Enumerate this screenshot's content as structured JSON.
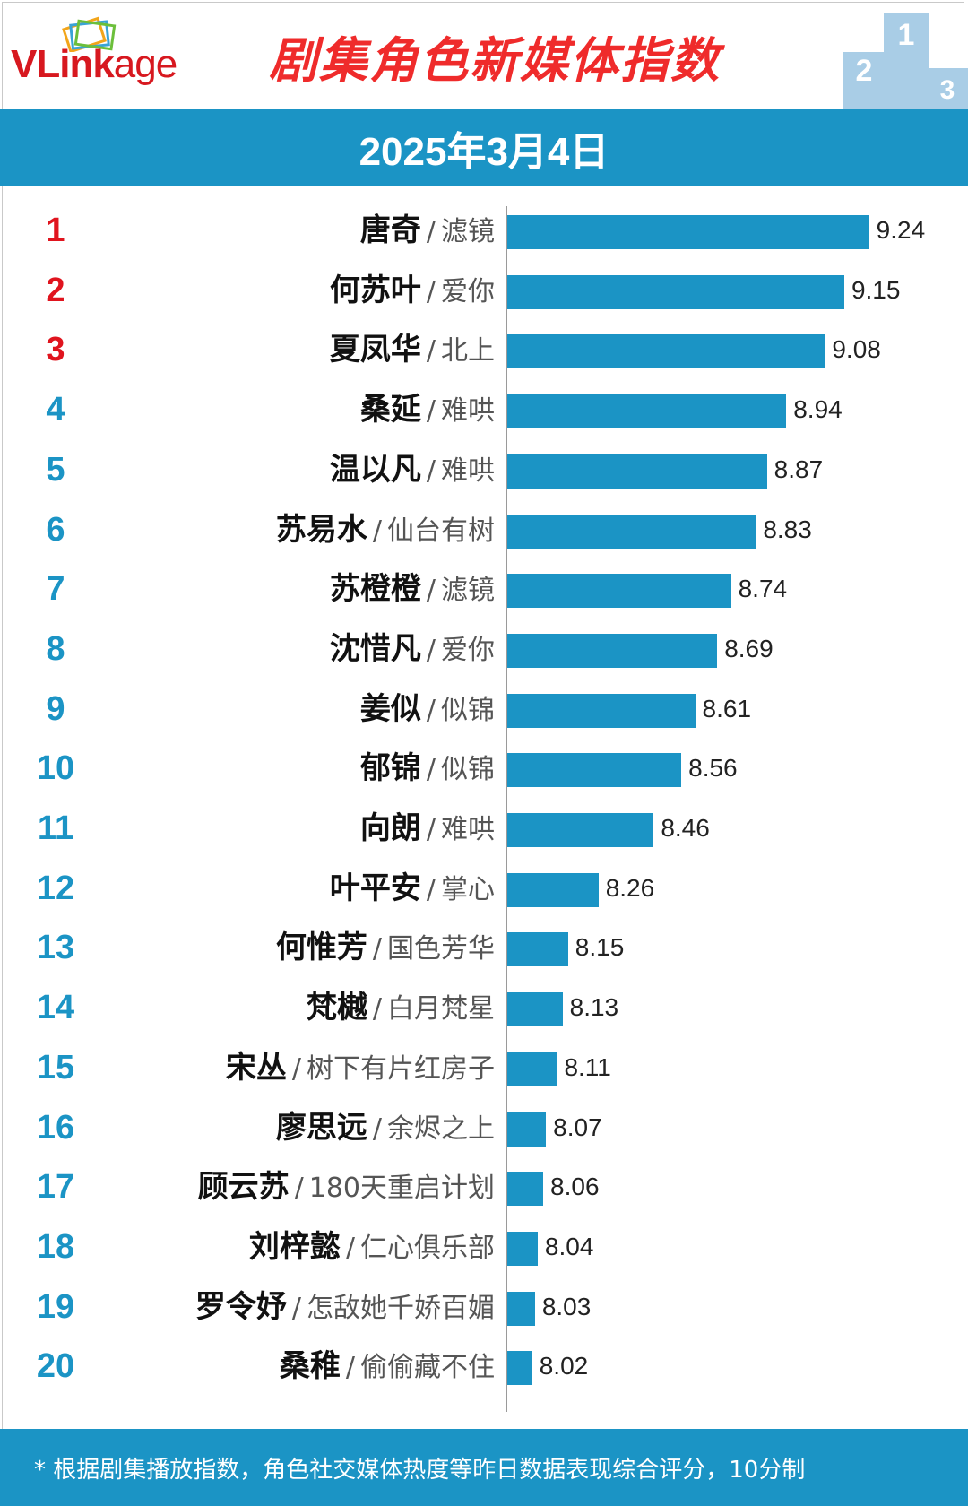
{
  "brand": {
    "logo_part1": "VLink",
    "logo_part2": "age"
  },
  "title": "剧集角色新媒体指数",
  "podium": {
    "left": "2",
    "center": "1",
    "right": "3"
  },
  "date": "2025年3月4日",
  "colors": {
    "bar": "#1b94c5",
    "banner": "#1b94c5",
    "top_rank": "#e0141e",
    "rank": "#1b94c5",
    "title": "#ef2b2b"
  },
  "separator": "/",
  "chart_data": {
    "type": "bar",
    "orientation": "horizontal",
    "categories": [
      "唐奇 / 滤镜",
      "何苏叶 / 爱你",
      "夏凤华 / 北上",
      "桑延 / 难哄",
      "温以凡 / 难哄",
      "苏易水 / 仙台有树",
      "苏橙橙 / 滤镜",
      "沈惜凡 / 爱你",
      "姜似 / 似锦",
      "郁锦 / 似锦",
      "向朗 / 难哄",
      "叶平安 / 掌心",
      "何惟芳 / 国色芳华",
      "梵樾 / 白月梵星",
      "宋丛 / 树下有片红房子",
      "廖思远 / 余烬之上",
      "顾云苏 / 180天重启计划",
      "刘梓懿 / 仁心俱乐部",
      "罗令妤 / 怎敌她千娇百媚",
      "桑稚 / 偷偷藏不住"
    ],
    "values": [
      9.24,
      9.15,
      9.08,
      8.94,
      8.87,
      8.83,
      8.74,
      8.69,
      8.61,
      8.56,
      8.46,
      8.26,
      8.15,
      8.13,
      8.11,
      8.07,
      8.06,
      8.04,
      8.03,
      8.02
    ],
    "axis_min": 7.93,
    "axis_max": 9.28,
    "grid": false,
    "items": [
      {
        "rank": "1",
        "name": "唐奇",
        "drama": "滤镜",
        "value": "9.24"
      },
      {
        "rank": "2",
        "name": "何苏叶",
        "drama": "爱你",
        "value": "9.15"
      },
      {
        "rank": "3",
        "name": "夏凤华",
        "drama": "北上",
        "value": "9.08"
      },
      {
        "rank": "4",
        "name": "桑延",
        "drama": "难哄",
        "value": "8.94"
      },
      {
        "rank": "5",
        "name": "温以凡",
        "drama": "难哄",
        "value": "8.87"
      },
      {
        "rank": "6",
        "name": "苏易水",
        "drama": "仙台有树",
        "value": "8.83"
      },
      {
        "rank": "7",
        "name": "苏橙橙",
        "drama": "滤镜",
        "value": "8.74"
      },
      {
        "rank": "8",
        "name": "沈惜凡",
        "drama": "爱你",
        "value": "8.69"
      },
      {
        "rank": "9",
        "name": "姜似",
        "drama": "似锦",
        "value": "8.61"
      },
      {
        "rank": "10",
        "name": "郁锦",
        "drama": "似锦",
        "value": "8.56"
      },
      {
        "rank": "11",
        "name": "向朗",
        "drama": "难哄",
        "value": "8.46"
      },
      {
        "rank": "12",
        "name": "叶平安",
        "drama": "掌心",
        "value": "8.26"
      },
      {
        "rank": "13",
        "name": "何惟芳",
        "drama": "国色芳华",
        "value": "8.15"
      },
      {
        "rank": "14",
        "name": "梵樾",
        "drama": "白月梵星",
        "value": "8.13"
      },
      {
        "rank": "15",
        "name": "宋丛",
        "drama": "树下有片红房子",
        "value": "8.11"
      },
      {
        "rank": "16",
        "name": "廖思远",
        "drama": "余烬之上",
        "value": "8.07"
      },
      {
        "rank": "17",
        "name": "顾云苏",
        "drama": "180天重启计划",
        "value": "8.06"
      },
      {
        "rank": "18",
        "name": "刘梓懿",
        "drama": "仁心俱乐部",
        "value": "8.04"
      },
      {
        "rank": "19",
        "name": "罗令妤",
        "drama": "怎敌她千娇百媚",
        "value": "8.03"
      },
      {
        "rank": "20",
        "name": "桑稚",
        "drama": "偷偷藏不住",
        "value": "8.02"
      }
    ]
  },
  "footer": "* 根据剧集播放指数，角色社交媒体热度等昨日数据表现综合评分，10分制"
}
